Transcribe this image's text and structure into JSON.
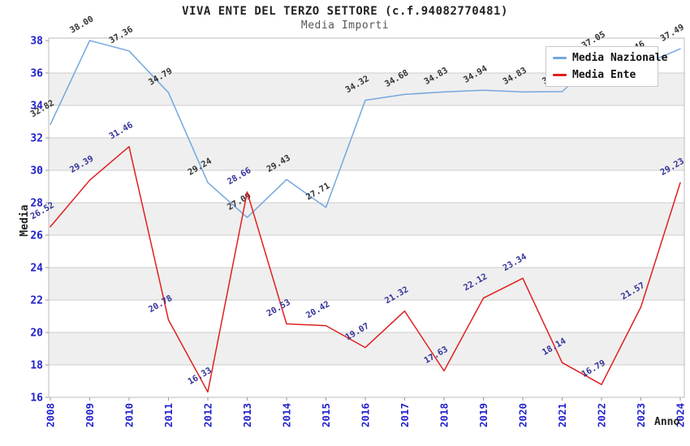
{
  "chart_data": {
    "type": "line",
    "title": "VIVA ENTE DEL TERZO SETTORE (c.f.94082770481)",
    "subtitle": "Media Importi",
    "xlabel": "Anno",
    "ylabel": "Media",
    "x": [
      2008,
      2009,
      2010,
      2011,
      2012,
      2013,
      2014,
      2015,
      2016,
      2017,
      2018,
      2019,
      2020,
      2021,
      2022,
      2023,
      2024
    ],
    "ylim": [
      16,
      38
    ],
    "yticks": [
      16,
      18,
      20,
      22,
      24,
      26,
      28,
      30,
      32,
      34,
      36,
      38
    ],
    "grid": true,
    "legend_position": "top-right",
    "series": [
      {
        "name": "Media Nazionale",
        "color": "#74a7df",
        "label_color": "#333333",
        "values": [
          32.82,
          38.0,
          37.36,
          34.79,
          29.24,
          27.09,
          29.43,
          27.71,
          34.32,
          34.68,
          34.83,
          34.94,
          34.83,
          34.85,
          37.05,
          36.46,
          37.49
        ]
      },
      {
        "name": "Media Ente",
        "color": "#df2020",
        "label_color": "#333399",
        "values": [
          26.52,
          29.39,
          31.46,
          20.78,
          16.33,
          28.66,
          20.53,
          20.42,
          19.07,
          21.32,
          17.63,
          22.12,
          23.34,
          18.14,
          16.79,
          21.57,
          29.23
        ]
      }
    ],
    "style": {
      "tick_label_color": "#2222cc",
      "band_color": "#efefef",
      "gridline_color": "#cccccc",
      "plot_border_color": "#bbbbbb"
    }
  }
}
